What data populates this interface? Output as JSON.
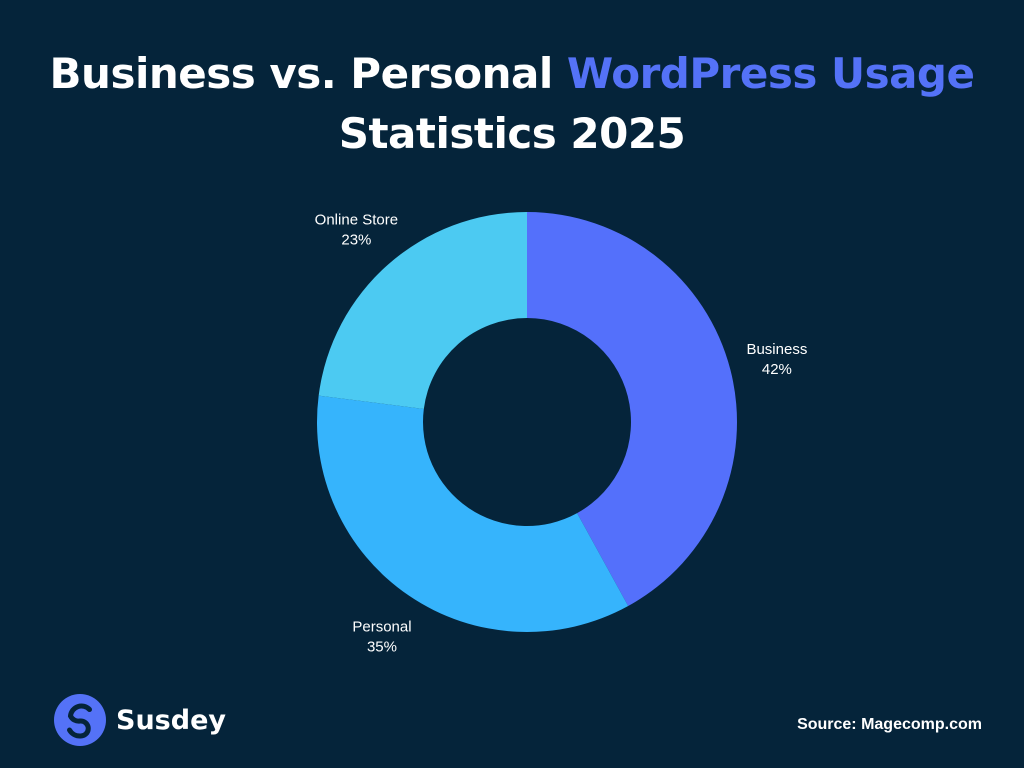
{
  "header": {
    "title_prefix": "Business vs. Personal ",
    "title_accent": "WordPress Usage",
    "title_line2": "Statistics 2025"
  },
  "colors": {
    "background": "#05243a",
    "accent": "#5472f7",
    "business": "#5470fb",
    "personal": "#36b4fc",
    "online_store": "#4ccaf2"
  },
  "chart_data": {
    "type": "pie",
    "style": "donut",
    "title": "Business vs. Personal WordPress Usage Statistics 2025",
    "slices": [
      {
        "label": "Business",
        "value": 42,
        "display": "42%",
        "color": "#5470fb"
      },
      {
        "label": "Personal",
        "value": 35,
        "display": "35%",
        "color": "#36b4fc"
      },
      {
        "label": "Online Store",
        "value": 23,
        "display": "23%",
        "color": "#4ccaf2"
      }
    ],
    "start": "12 o'clock",
    "direction": "clockwise",
    "labels": "outside"
  },
  "brand": {
    "name": "Susdey",
    "icon": "s-logo-icon"
  },
  "footer": {
    "source": "Source: Magecomp.com"
  }
}
